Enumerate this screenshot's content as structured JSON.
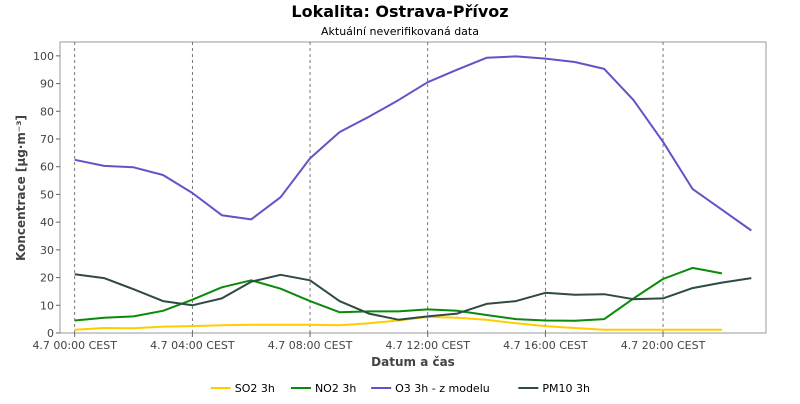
{
  "chart_data": {
    "type": "line",
    "title": "Lokalita: Ostrava-Přívoz",
    "subtitle": "Aktuální neverifikovaná data",
    "xlabel": "Datum a čas",
    "ylabel": "Koncentrace [µg·m⁻³]",
    "ylim": [
      0,
      105
    ],
    "y_ticks": [
      0,
      10,
      20,
      30,
      40,
      50,
      60,
      70,
      80,
      90,
      100
    ],
    "x_range_hours": [
      -0.5,
      23.5
    ],
    "x_ticks": [
      {
        "hour": 0,
        "label": "4.7 00:00 CEST"
      },
      {
        "hour": 4,
        "label": "4.7 04:00 CEST"
      },
      {
        "hour": 8,
        "label": "4.7 08:00 CEST"
      },
      {
        "hour": 12,
        "label": "4.7 12:00 CEST"
      },
      {
        "hour": 16,
        "label": "4.7 16:00 CEST"
      },
      {
        "hour": 20,
        "label": "4.7 20:00 CEST"
      }
    ],
    "grid": true,
    "legend_position": "bottom",
    "x_hours": [
      0,
      1,
      2,
      3,
      4,
      5,
      6,
      7,
      8,
      9,
      10,
      11,
      12,
      13,
      14,
      15,
      16,
      17,
      18,
      19,
      20,
      21,
      22,
      23
    ],
    "series": [
      {
        "name": "SO2 3h",
        "color": "#ffcc00",
        "values": [
          1.2,
          1.8,
          1.7,
          2.3,
          2.5,
          2.8,
          3.0,
          3.0,
          3.0,
          2.8,
          3.5,
          4.5,
          5.8,
          5.5,
          4.8,
          3.5,
          2.5,
          1.8,
          1.2,
          1.2,
          1.2,
          1.2,
          1.2,
          null
        ]
      },
      {
        "name": "NO2 3h",
        "color": "#0a8a0a",
        "values": [
          4.5,
          5.5,
          6.0,
          8.0,
          12.0,
          16.5,
          19.0,
          16.0,
          11.5,
          7.5,
          7.8,
          7.8,
          8.5,
          8.0,
          6.5,
          5.0,
          4.5,
          4.4,
          5.0,
          12.5,
          19.5,
          23.5,
          21.5,
          null
        ]
      },
      {
        "name": "O3 3h - z modelu",
        "color": "#6a4fc8",
        "values": [
          62.5,
          60.3,
          59.8,
          57.0,
          50.5,
          42.5,
          41.0,
          49.0,
          63.0,
          72.5,
          78.0,
          84.0,
          90.5,
          95.0,
          99.3,
          99.8,
          99.0,
          97.8,
          95.3,
          84.0,
          69.0,
          52.0,
          44.5,
          37.0
        ]
      },
      {
        "name": "PM10 3h",
        "color": "#2e4a45",
        "values": [
          21.2,
          19.8,
          15.8,
          11.5,
          10.0,
          12.5,
          18.5,
          21.0,
          19.0,
          11.5,
          7.0,
          4.8,
          6.0,
          7.0,
          10.5,
          11.5,
          14.5,
          13.8,
          14.0,
          12.2,
          12.5,
          16.2,
          18.2,
          19.8
        ]
      }
    ]
  }
}
